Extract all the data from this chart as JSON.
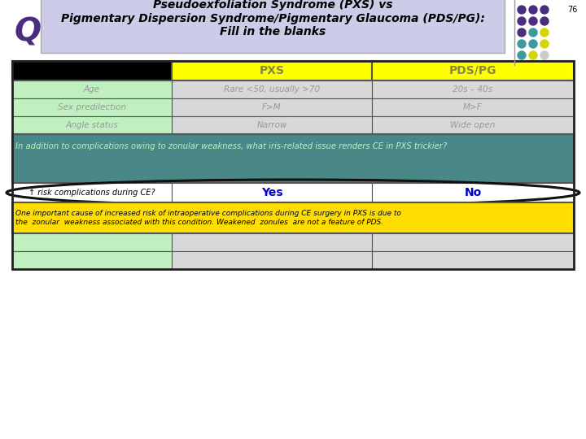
{
  "page_num": "76",
  "q_label": "Q",
  "title_text": "Pseudoexfoliation Syndrome (PXS) vs\nPigmentary Dispersion Syndrome/Pigmentary Glaucoma (PDS/PG):\nFill in the blanks",
  "title_box_color": "#cccce8",
  "bg_color": "#ffffff",
  "dot_grid": [
    [
      "#4b2d7f",
      "#4b2d7f",
      "#4b2d7f"
    ],
    [
      "#4b2d7f",
      "#4b2d7f",
      "#4b2d7f"
    ],
    [
      "#4b2d7f",
      "#3d9b9b",
      "#d4d800"
    ],
    [
      "#3d9b9b",
      "#3d9b9b",
      "#d4d800"
    ],
    [
      "#3d9b9b",
      "#d4d800",
      "#cccccc"
    ],
    [
      "#d4d800",
      "#cccccc",
      "#cccccc"
    ],
    [
      "#cccccc",
      "#cccccc",
      "#cccccc"
    ]
  ],
  "header_row": {
    "col1_bg": "#000000",
    "col2_bg": "#ffff00",
    "col3_bg": "#ffff00",
    "col2_text": "PXS",
    "col3_text": "PDS/PG",
    "text_color": "#888840"
  },
  "data_rows": [
    {
      "col1": "Age",
      "col2": "Rare <50, usually >70",
      "col3": "20s – 40s"
    },
    {
      "col1": "Sex predilection",
      "col2": "F>M",
      "col3": "M>F"
    },
    {
      "col1": "Angle status",
      "col2": "Narrow",
      "col3": "Wide open"
    }
  ],
  "data_col1_bg": "#c0f0c0",
  "data_col23_bg": "#d8d8d8",
  "data_text_color": "#999999",
  "question_text_pre": "In addition to complications owing to zonular weakness, what ",
  "question_text_bold": "iris-related",
  "question_text_post": " issue renders CE in PXS trickier?",
  "question_bg": "#4a8888",
  "question_text_color": "#c0f0c0",
  "answer_col1": "↑ risk complications during CE?",
  "answer_col2": "Yes",
  "answer_col3": "No",
  "answer_col2_color": "#0000cc",
  "answer_col3_color": "#0000cc",
  "answer_col1_color": "#000000",
  "answer_bg": "#ffffff",
  "explanation_text": "One important cause of increased risk of intraoperative complications during CE surgery in PXS is due to\nthe  zonular  weakness associated with this condition. Weakened  zonules  are not a feature of PDS.",
  "explanation_bg": "#ffdd00",
  "explanation_text_color": "#000000",
  "empty_col1_bg": "#c0f0c0",
  "empty_col23_bg": "#d8d8d8"
}
